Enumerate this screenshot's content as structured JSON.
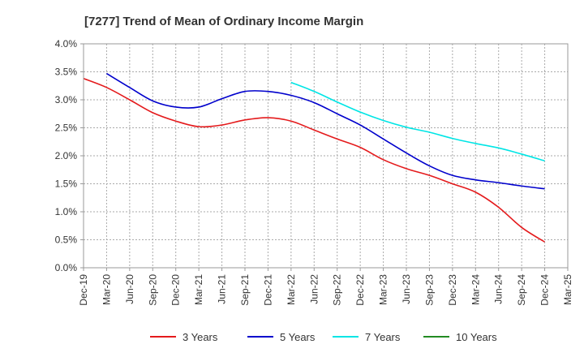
{
  "chart_data": {
    "type": "line",
    "title": "[7277]  Trend of Mean of Ordinary Income Margin",
    "xlabel": "",
    "ylabel": "",
    "x": [
      "Dec-19",
      "Mar-20",
      "Jun-20",
      "Sep-20",
      "Dec-20",
      "Mar-21",
      "Jun-21",
      "Sep-21",
      "Dec-21",
      "Mar-22",
      "Jun-22",
      "Sep-22",
      "Dec-22",
      "Mar-23",
      "Jun-23",
      "Sep-23",
      "Dec-23",
      "Mar-24",
      "Jun-24",
      "Sep-24",
      "Dec-24",
      "Mar-25"
    ],
    "y_ticks": [
      "0.0%",
      "0.5%",
      "1.0%",
      "1.5%",
      "2.0%",
      "2.5%",
      "3.0%",
      "3.5%",
      "4.0%"
    ],
    "ylim": [
      0,
      4.0
    ],
    "grid": true,
    "legend_position": "bottom",
    "series": [
      {
        "name": "3 Years",
        "color": "#e41a1c",
        "values": [
          3.38,
          3.22,
          3.0,
          2.77,
          2.62,
          2.52,
          2.55,
          2.64,
          2.68,
          2.62,
          2.46,
          2.3,
          2.15,
          1.93,
          1.77,
          1.65,
          1.5,
          1.35,
          1.08,
          0.72,
          0.46,
          null
        ]
      },
      {
        "name": "5 Years",
        "color": "#0000cc",
        "values": [
          null,
          3.47,
          3.22,
          2.98,
          2.87,
          2.87,
          3.02,
          3.15,
          3.15,
          3.08,
          2.95,
          2.75,
          2.55,
          2.3,
          2.05,
          1.82,
          1.65,
          1.57,
          1.52,
          1.46,
          1.41,
          null
        ]
      },
      {
        "name": "7 Years",
        "color": "#00e5e5",
        "values": [
          null,
          null,
          null,
          null,
          null,
          null,
          null,
          null,
          null,
          3.31,
          3.15,
          2.96,
          2.78,
          2.63,
          2.51,
          2.42,
          2.31,
          2.22,
          2.14,
          2.03,
          1.91,
          null
        ]
      },
      {
        "name": "10 Years",
        "color": "#228b22",
        "values": [
          null,
          null,
          null,
          null,
          null,
          null,
          null,
          null,
          null,
          null,
          null,
          null,
          null,
          null,
          null,
          null,
          null,
          null,
          null,
          null,
          null,
          null
        ]
      }
    ]
  }
}
